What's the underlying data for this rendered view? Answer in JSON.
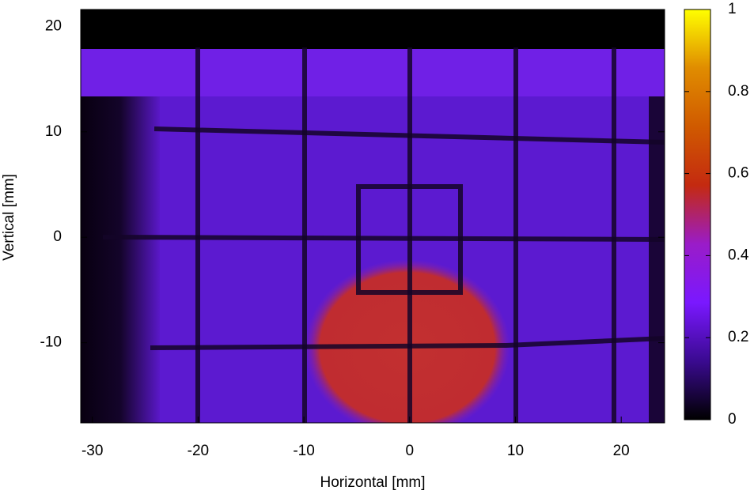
{
  "chart_data": {
    "type": "heatmap",
    "xlabel": "Horizontal [mm]",
    "ylabel": "Vertical [mm]",
    "xlim": [
      -31.1,
      24.1
    ],
    "xticks": [
      -30,
      -20,
      -10,
      0,
      10,
      20
    ],
    "ylim": [
      -17.6,
      21.6
    ],
    "yticks": [
      -10,
      0,
      10,
      20
    ],
    "cblim": [
      0,
      1
    ],
    "cbticks": [
      0,
      0.2,
      0.4,
      0.6,
      0.8,
      1
    ],
    "colormap": [
      "#000000",
      "#3a0a90",
      "#7a18ff",
      "#9a1cc8",
      "#c42a10",
      "#d05a00",
      "#e08c00",
      "#ffff00"
    ]
  }
}
